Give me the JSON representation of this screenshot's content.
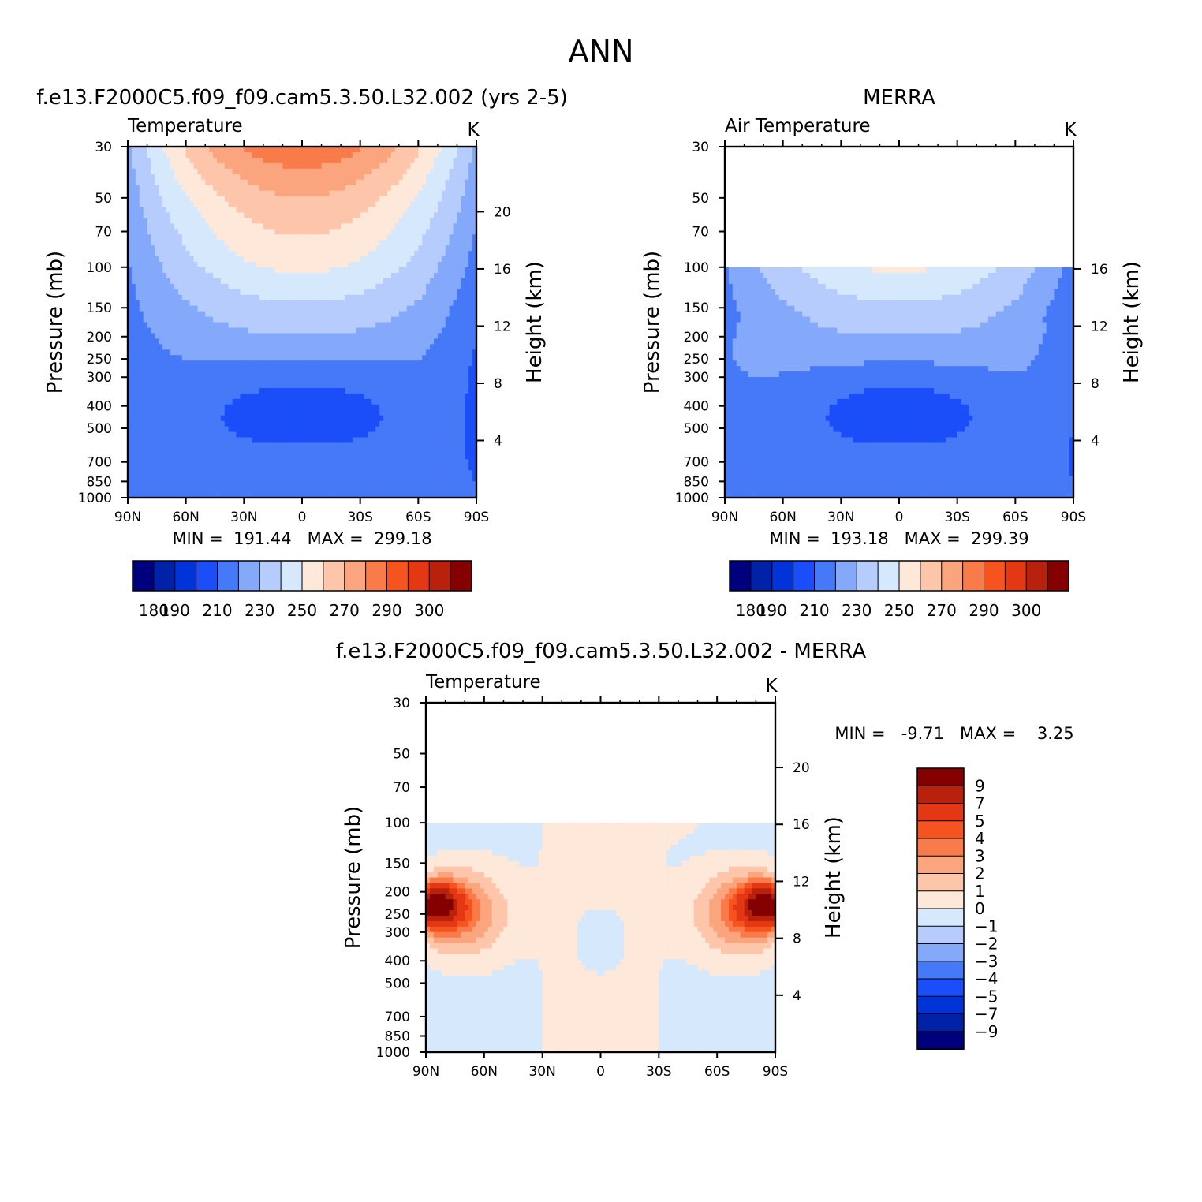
{
  "page_title": "ANN",
  "chart_data": [
    {
      "type": "contour",
      "id": "model",
      "title": "f.e13.F2000C5.f09_f09.cam5.3.50.L32.002 (yrs 2-5)",
      "subtitle": "Temperature",
      "units": "K",
      "x_ticks": [
        "90N",
        "60N",
        "30N",
        "0",
        "30S",
        "60S",
        "90S"
      ],
      "y_ticks": [
        "30",
        "50",
        "70",
        "100",
        "150",
        "200",
        "250",
        "300",
        "400",
        "500",
        "700",
        "850",
        "1000"
      ],
      "y_label": "Pressure (mb)",
      "y2_ticks": [
        "20",
        "16",
        "12",
        "8",
        "4"
      ],
      "y2_label": "Height (km)",
      "stats": "MIN =  191.44   MAX =  299.18",
      "min": 191.44,
      "max": 299.18,
      "data_top_mb": 30,
      "colorbar_labels": [
        "180",
        "190",
        "210",
        "230",
        "250",
        "270",
        "290",
        "300"
      ]
    },
    {
      "type": "contour",
      "id": "obs",
      "title": "MERRA",
      "subtitle": "Air Temperature",
      "units": "K",
      "x_ticks": [
        "90N",
        "60N",
        "30N",
        "0",
        "30S",
        "60S",
        "90S"
      ],
      "y_ticks": [
        "30",
        "50",
        "70",
        "100",
        "150",
        "200",
        "250",
        "300",
        "400",
        "500",
        "700",
        "850",
        "1000"
      ],
      "y_label": "Pressure (mb)",
      "y2_ticks": [
        "16",
        "12",
        "8",
        "4"
      ],
      "y2_label": "Height (km)",
      "stats": "MIN =  193.18   MAX =  299.39",
      "min": 193.18,
      "max": 299.39,
      "data_top_mb": 100,
      "colorbar_labels": [
        "180",
        "190",
        "210",
        "230",
        "250",
        "270",
        "290",
        "300"
      ]
    },
    {
      "type": "contour",
      "id": "diff",
      "title": "f.e13.F2000C5.f09_f09.cam5.3.50.L32.002 - MERRA",
      "subtitle": "Temperature",
      "units": "K",
      "x_ticks": [
        "90N",
        "60N",
        "30N",
        "0",
        "30S",
        "60S",
        "90S"
      ],
      "y_ticks": [
        "30",
        "50",
        "70",
        "100",
        "150",
        "200",
        "250",
        "300",
        "400",
        "500",
        "700",
        "850",
        "1000"
      ],
      "y_label": "Pressure (mb)",
      "y2_ticks": [
        "20",
        "16",
        "12",
        "8",
        "4"
      ],
      "y2_label": "Height (km)",
      "stats": "MIN =   -9.71   MAX =    3.25",
      "min": -9.71,
      "max": 3.25,
      "data_top_mb": 100,
      "colorbar_labels": [
        "9",
        "7",
        "5",
        "4",
        "3",
        "2",
        "1",
        "0",
        "-1",
        "-2",
        "-3",
        "-4",
        "-5",
        "-7",
        "-9"
      ]
    }
  ],
  "palette": {
    "temperature": [
      "#00007f",
      "#0022a8",
      "#0034d9",
      "#1b4ef8",
      "#4679f8",
      "#84a9fb",
      "#b6ccfd",
      "#d6e8fc",
      "#fde8d9",
      "#fdc6ab",
      "#fba57f",
      "#f97b49",
      "#f5541e",
      "#e43714",
      "#b8220c",
      "#850000"
    ],
    "difference": [
      "#850000",
      "#b8220c",
      "#e43714",
      "#f5541e",
      "#f97b49",
      "#fba57f",
      "#fdc6ab",
      "#fde8d9",
      "#d6e8fc",
      "#b6ccfd",
      "#84a9fb",
      "#4679f8",
      "#1b4ef8",
      "#0034d9",
      "#0022a8",
      "#00007f"
    ]
  }
}
